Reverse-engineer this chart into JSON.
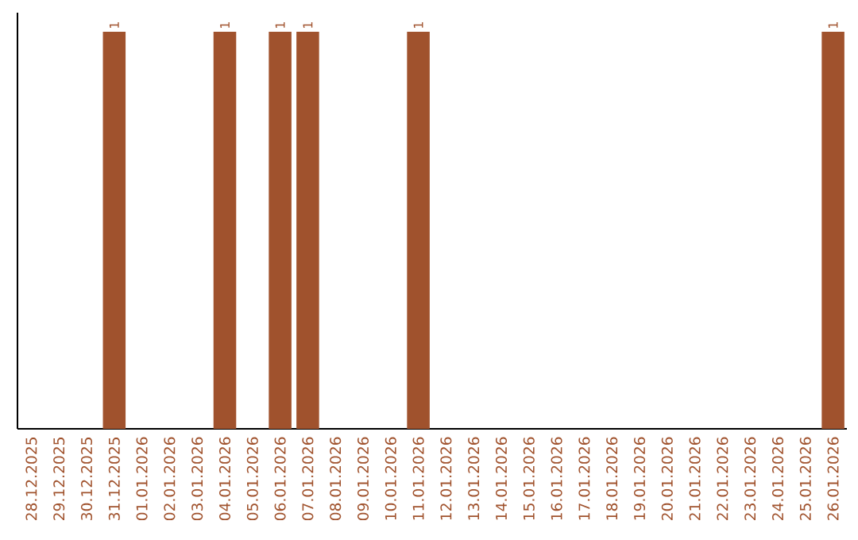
{
  "chart_data": {
    "type": "bar",
    "categories": [
      "28.12.2025",
      "29.12.2025",
      "30.12.2025",
      "31.12.2025",
      "01.01.2026",
      "02.01.2026",
      "03.01.2026",
      "04.01.2026",
      "05.01.2026",
      "06.01.2026",
      "07.01.2026",
      "08.01.2026",
      "09.01.2026",
      "10.01.2026",
      "11.01.2026",
      "12.01.2026",
      "13.01.2026",
      "14.01.2026",
      "15.01.2026",
      "16.01.2026",
      "17.01.2026",
      "18.01.2026",
      "19.01.2026",
      "20.01.2026",
      "21.01.2026",
      "22.01.2026",
      "23.01.2026",
      "24.01.2026",
      "25.01.2026",
      "26.01.2026"
    ],
    "values": [
      0,
      0,
      0,
      1,
      0,
      0,
      0,
      1,
      0,
      1,
      1,
      0,
      0,
      0,
      1,
      0,
      0,
      0,
      0,
      0,
      0,
      0,
      0,
      0,
      0,
      0,
      0,
      0,
      0,
      1
    ],
    "value_labels": [
      null,
      null,
      null,
      "1",
      null,
      null,
      null,
      "1",
      null,
      "1",
      "1",
      null,
      null,
      null,
      "1",
      null,
      null,
      null,
      null,
      null,
      null,
      null,
      null,
      null,
      null,
      null,
      null,
      null,
      null,
      "1"
    ],
    "color": "#a0522d",
    "tick_labels": "x",
    "grid": false
  }
}
